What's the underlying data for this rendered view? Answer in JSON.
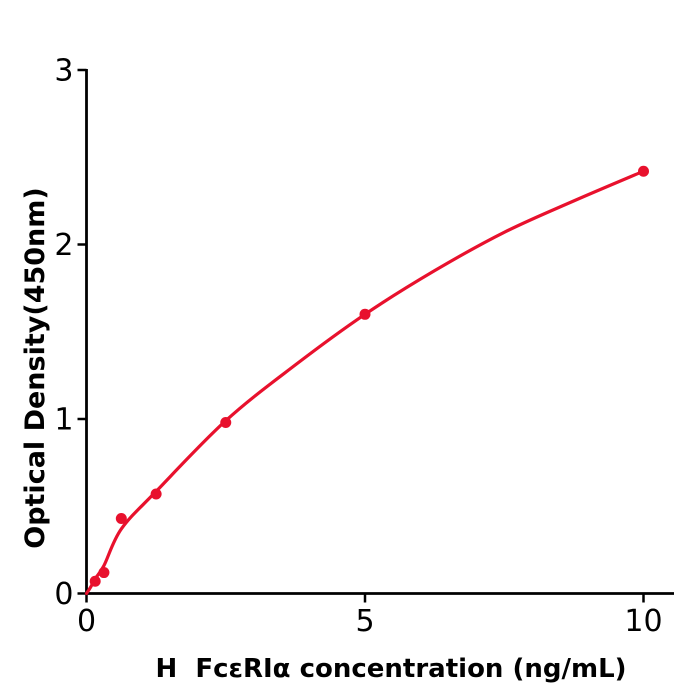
{
  "figure": {
    "background": "#ffffff",
    "accent_color": "#e8112d",
    "axis_color": "#000000"
  },
  "chart_data": {
    "type": "scatter",
    "title": "",
    "xlabel": "H  FcεRIα concentration (ng/mL)",
    "ylabel": "Optical Density(450nm)",
    "xlim": [
      0,
      10.55
    ],
    "ylim": [
      0,
      3
    ],
    "xticks": [
      0,
      5,
      10
    ],
    "yticks": [
      0,
      1,
      2,
      3
    ],
    "grid": false,
    "legend_position": "none",
    "marker_color": "#e8112d",
    "line_color": "#e8112d",
    "series": [
      {
        "name": "measured-points",
        "type": "scatter",
        "points": [
          {
            "x": 0.156,
            "y": 0.07
          },
          {
            "x": 0.313,
            "y": 0.12
          },
          {
            "x": 0.625,
            "y": 0.43
          },
          {
            "x": 1.25,
            "y": 0.57
          },
          {
            "x": 2.5,
            "y": 0.98
          },
          {
            "x": 5,
            "y": 1.6
          },
          {
            "x": 10,
            "y": 2.42
          }
        ]
      },
      {
        "name": "fitted-curve",
        "type": "line",
        "points": [
          {
            "x": 0,
            "y": 0
          },
          {
            "x": 0.08,
            "y": 0.04
          },
          {
            "x": 0.156,
            "y": 0.085
          },
          {
            "x": 0.313,
            "y": 0.16
          },
          {
            "x": 0.625,
            "y": 0.37
          },
          {
            "x": 1.25,
            "y": 0.585
          },
          {
            "x": 2.5,
            "y": 0.99
          },
          {
            "x": 3.75,
            "y": 1.31
          },
          {
            "x": 5,
            "y": 1.6
          },
          {
            "x": 6.25,
            "y": 1.85
          },
          {
            "x": 7.5,
            "y": 2.07
          },
          {
            "x": 8.75,
            "y": 2.25
          },
          {
            "x": 10,
            "y": 2.42
          }
        ]
      }
    ]
  }
}
